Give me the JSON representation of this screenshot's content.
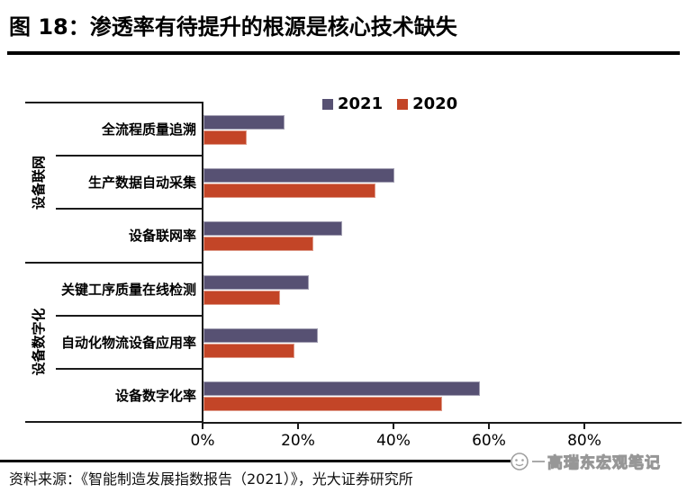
{
  "header": {
    "title": "图 18：渗透率有待提升的根源是核心技术缺失"
  },
  "footer": {
    "source": "资料来源：《智能制造发展指数报告（2021）》，光大证券研究所",
    "watermark": "高瑞东宏观笔记"
  },
  "chart_data": {
    "type": "bar",
    "orientation": "horizontal",
    "title": "图 18：渗透率有待提升的根源是核心技术缺失",
    "groups": [
      {
        "label": "设备联网",
        "category_indices": [
          0,
          1,
          2
        ]
      },
      {
        "label": "设备数字化",
        "category_indices": [
          3,
          4,
          5
        ]
      }
    ],
    "categories": [
      "全流程质量追溯",
      "生产数据自动采集",
      "设备联网率",
      "关键工序质量在线检测",
      "自动化物流设备应用率",
      "设备数字化率"
    ],
    "series": [
      {
        "name": "2021",
        "color": "#575173",
        "values": [
          17,
          40,
          29,
          22,
          24,
          58
        ]
      },
      {
        "name": "2020",
        "color": "#C34527",
        "values": [
          9,
          36,
          23,
          16,
          19,
          50
        ]
      }
    ],
    "value_unit": "%",
    "x_ticks": [
      "0%",
      "20%",
      "40%",
      "60%",
      "80%"
    ],
    "xlim": [
      0,
      100
    ],
    "grid": false,
    "legend_position": "top"
  }
}
